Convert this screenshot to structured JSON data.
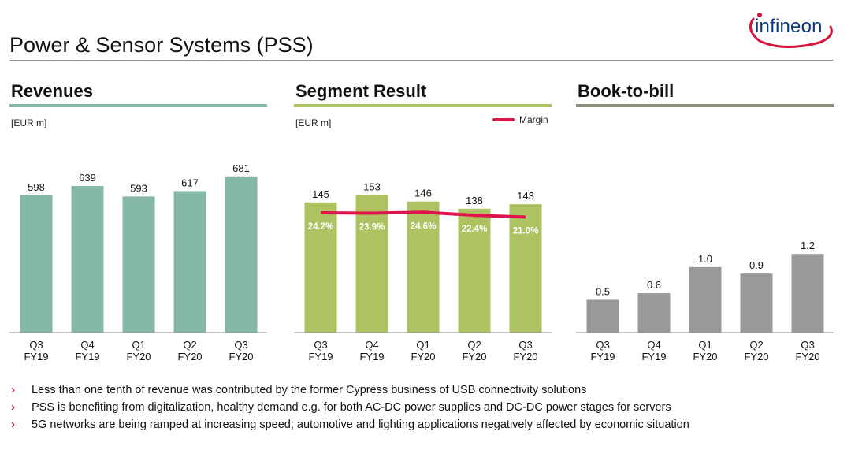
{
  "header": {
    "title": "Power & Sensor Systems (PSS)",
    "logo_text": "infineon"
  },
  "colors": {
    "revenues": "#85b9a6",
    "revenues_rule": "#85b9a6",
    "segment": "#adc261",
    "segment_rule": "#adc261",
    "book": "#999999",
    "book_rule": "#8c8c7a",
    "margin_line": "#e0144c",
    "bullet_marker": "#b8123c"
  },
  "panels": {
    "revenues": {
      "title": "Revenues",
      "unit": "[EUR m]"
    },
    "segment": {
      "title": "Segment Result",
      "unit": "[EUR m]",
      "legend": "Margin"
    },
    "book": {
      "title": "Book-to-bill"
    }
  },
  "chart_data": [
    {
      "type": "bar",
      "title": "Revenues",
      "ylabel": "[EUR m]",
      "categories": [
        [
          "Q3",
          "FY19"
        ],
        [
          "Q4",
          "FY19"
        ],
        [
          "Q1",
          "FY20"
        ],
        [
          "Q2",
          "FY20"
        ],
        [
          "Q3",
          "FY20"
        ]
      ],
      "values": [
        598,
        639,
        593,
        617,
        681
      ],
      "labels": [
        "598",
        "639",
        "593",
        "617",
        "681"
      ],
      "ylim": [
        0,
        900
      ],
      "grid": false
    },
    {
      "type": "bar",
      "title": "Segment Result",
      "ylabel": "[EUR m]",
      "categories": [
        [
          "Q3",
          "FY19"
        ],
        [
          "Q4",
          "FY19"
        ],
        [
          "Q1",
          "FY20"
        ],
        [
          "Q2",
          "FY20"
        ],
        [
          "Q3",
          "FY20"
        ]
      ],
      "values": [
        145,
        153,
        146,
        138,
        143
      ],
      "labels": [
        "145",
        "153",
        "146",
        "138",
        "143"
      ],
      "ylim": [
        0,
        230
      ],
      "margin_series": {
        "name": "Margin",
        "type": "line",
        "values": [
          24.2,
          23.9,
          24.6,
          22.4,
          21.0
        ],
        "labels": [
          "24.2%",
          "23.9%",
          "24.6%",
          "22.4%",
          "21.0%"
        ],
        "ylim": [
          -64,
          88
        ]
      },
      "legend": "top-right",
      "grid": false
    },
    {
      "type": "bar",
      "title": "Book-to-bill",
      "categories": [
        [
          "Q3",
          "FY19"
        ],
        [
          "Q4",
          "FY19"
        ],
        [
          "Q1",
          "FY20"
        ],
        [
          "Q2",
          "FY20"
        ],
        [
          "Q3",
          "FY20"
        ]
      ],
      "values": [
        0.5,
        0.6,
        1.0,
        0.9,
        1.2
      ],
      "labels": [
        "0.5",
        "0.6",
        "1.0",
        "0.9",
        "1.2"
      ],
      "ylim": [
        0,
        3.15
      ],
      "grid": false
    }
  ],
  "bullets": [
    "Less than one tenth of revenue was contributed by the former Cypress business of USB connectivity solutions",
    "PSS is benefiting from digitalization, healthy demand e.g. for both AC-DC power supplies and DC-DC power stages for servers",
    "5G networks are being ramped at increasing speed; automotive and lighting applications negatively affected by economic situation"
  ],
  "bullet_marker": "›"
}
